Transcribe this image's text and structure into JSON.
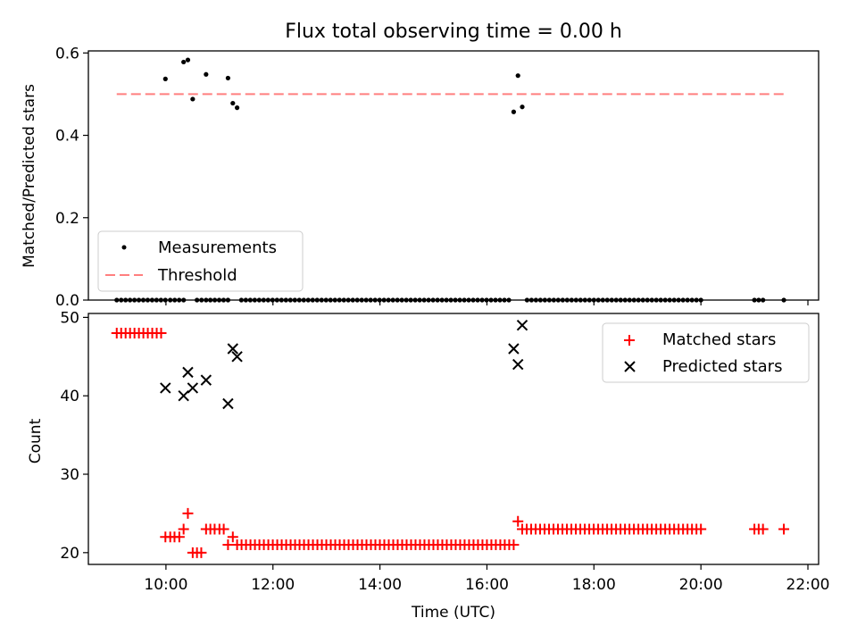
{
  "title": "Flux total observing time = 0.00 h",
  "chart_data": [
    {
      "type": "scatter",
      "panel": "top",
      "ylabel": "Matched/Predicted stars",
      "xlabel": "",
      "xlim": [
        8.55,
        22.2
      ],
      "ylim": [
        0,
        0.605
      ],
      "yticks": [
        0.0,
        0.2,
        0.4,
        0.6
      ],
      "ytick_labels": [
        "0.0",
        "0.2",
        "0.4",
        "0.6"
      ],
      "legend_position": "lower-left",
      "grid": false,
      "series": [
        {
          "name": "Measurements",
          "kind": "scatter",
          "color": "#000000",
          "x": [
            9.99,
            10.33,
            10.41,
            10.5,
            10.75,
            11.16,
            11.25,
            11.33,
            16.5,
            16.58,
            16.66
          ],
          "y": [
            0.537,
            0.578,
            0.583,
            0.488,
            0.548,
            0.539,
            0.478,
            0.467,
            0.457,
            0.545,
            0.469
          ]
        },
        {
          "name": "Threshold",
          "kind": "line",
          "color": "#ff7f7f",
          "x": [
            9.08,
            21.55
          ],
          "y": [
            0.5,
            0.5
          ]
        }
      ],
      "zero_series": {
        "color": "#000000",
        "y": 0.0,
        "segments": [
          [
            9.08,
            9.99,
            12
          ],
          [
            10.08,
            10.33,
            4
          ],
          [
            10.58,
            10.75,
            3
          ],
          [
            10.83,
            11.16,
            5
          ],
          [
            11.41,
            16.41,
            61
          ],
          [
            16.75,
            20.0,
            40
          ]
        ],
        "x": [
          21.0,
          21.08,
          21.16,
          21.55
        ]
      }
    },
    {
      "type": "scatter",
      "panel": "bottom",
      "ylabel": "Count",
      "xlabel": "Time (UTC)",
      "xlim": [
        8.55,
        22.2
      ],
      "ylim": [
        18.5,
        50.5
      ],
      "yticks": [
        20,
        30,
        40,
        50
      ],
      "ytick_labels": [
        "20",
        "30",
        "40",
        "50"
      ],
      "xticks": [
        10,
        12,
        14,
        16,
        18,
        20,
        22
      ],
      "xtick_labels": [
        "10:00",
        "12:00",
        "14:00",
        "16:00",
        "18:00",
        "20:00",
        "22:00"
      ],
      "legend_position": "upper-right",
      "grid": false,
      "series": [
        {
          "name": "Matched stars",
          "kind": "plus",
          "color": "#ff0000",
          "x": [
            9.99,
            10.08,
            10.16,
            10.25,
            10.33,
            10.41,
            10.5,
            10.58,
            10.66,
            10.75,
            10.83,
            10.91,
            11.0,
            11.08,
            11.16,
            11.25,
            16.58,
            21.0,
            21.08,
            21.16,
            21.55
          ],
          "y": [
            22,
            22,
            22,
            22,
            23,
            25,
            20,
            20,
            20,
            23,
            23,
            23,
            23,
            23,
            21,
            22,
            24,
            23,
            23,
            23,
            23
          ],
          "segments": [
            {
              "from": 9.08,
              "to": 9.91,
              "count": 11,
              "y": 48
            },
            {
              "from": 11.33,
              "to": 16.5,
              "count": 63,
              "y": 21
            },
            {
              "from": 16.66,
              "to": 20.0,
              "count": 41,
              "y": 23
            }
          ]
        },
        {
          "name": "Predicted stars",
          "kind": "x",
          "color": "#000000",
          "x": [
            9.99,
            10.33,
            10.41,
            10.5,
            10.75,
            11.16,
            11.25,
            11.33,
            16.5,
            16.58,
            16.66
          ],
          "y": [
            41,
            40,
            43,
            41,
            42,
            39,
            46,
            45,
            46,
            44,
            49
          ]
        }
      ]
    }
  ]
}
